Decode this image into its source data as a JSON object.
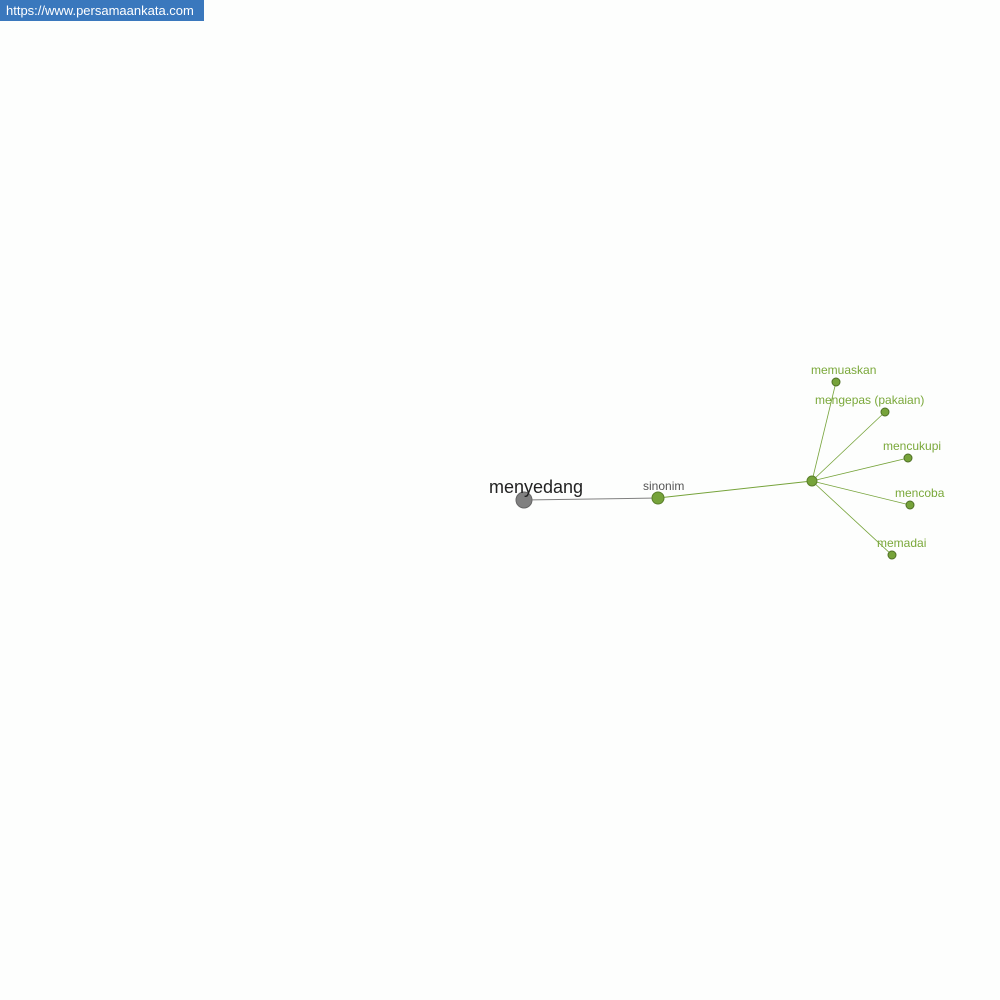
{
  "watermark": "https://www.persamaankata.com",
  "colors": {
    "root": "#808080",
    "green": "#76a33a",
    "label_green": "#7aa83a",
    "root_label": "#222222",
    "relation_label": "#555555"
  },
  "graph": {
    "root": "menyedang",
    "relation": "sinonim",
    "synonyms": [
      "memuaskan",
      "mengepas (pakaian)",
      "mencukupi",
      "mencoba",
      "memadai"
    ]
  }
}
